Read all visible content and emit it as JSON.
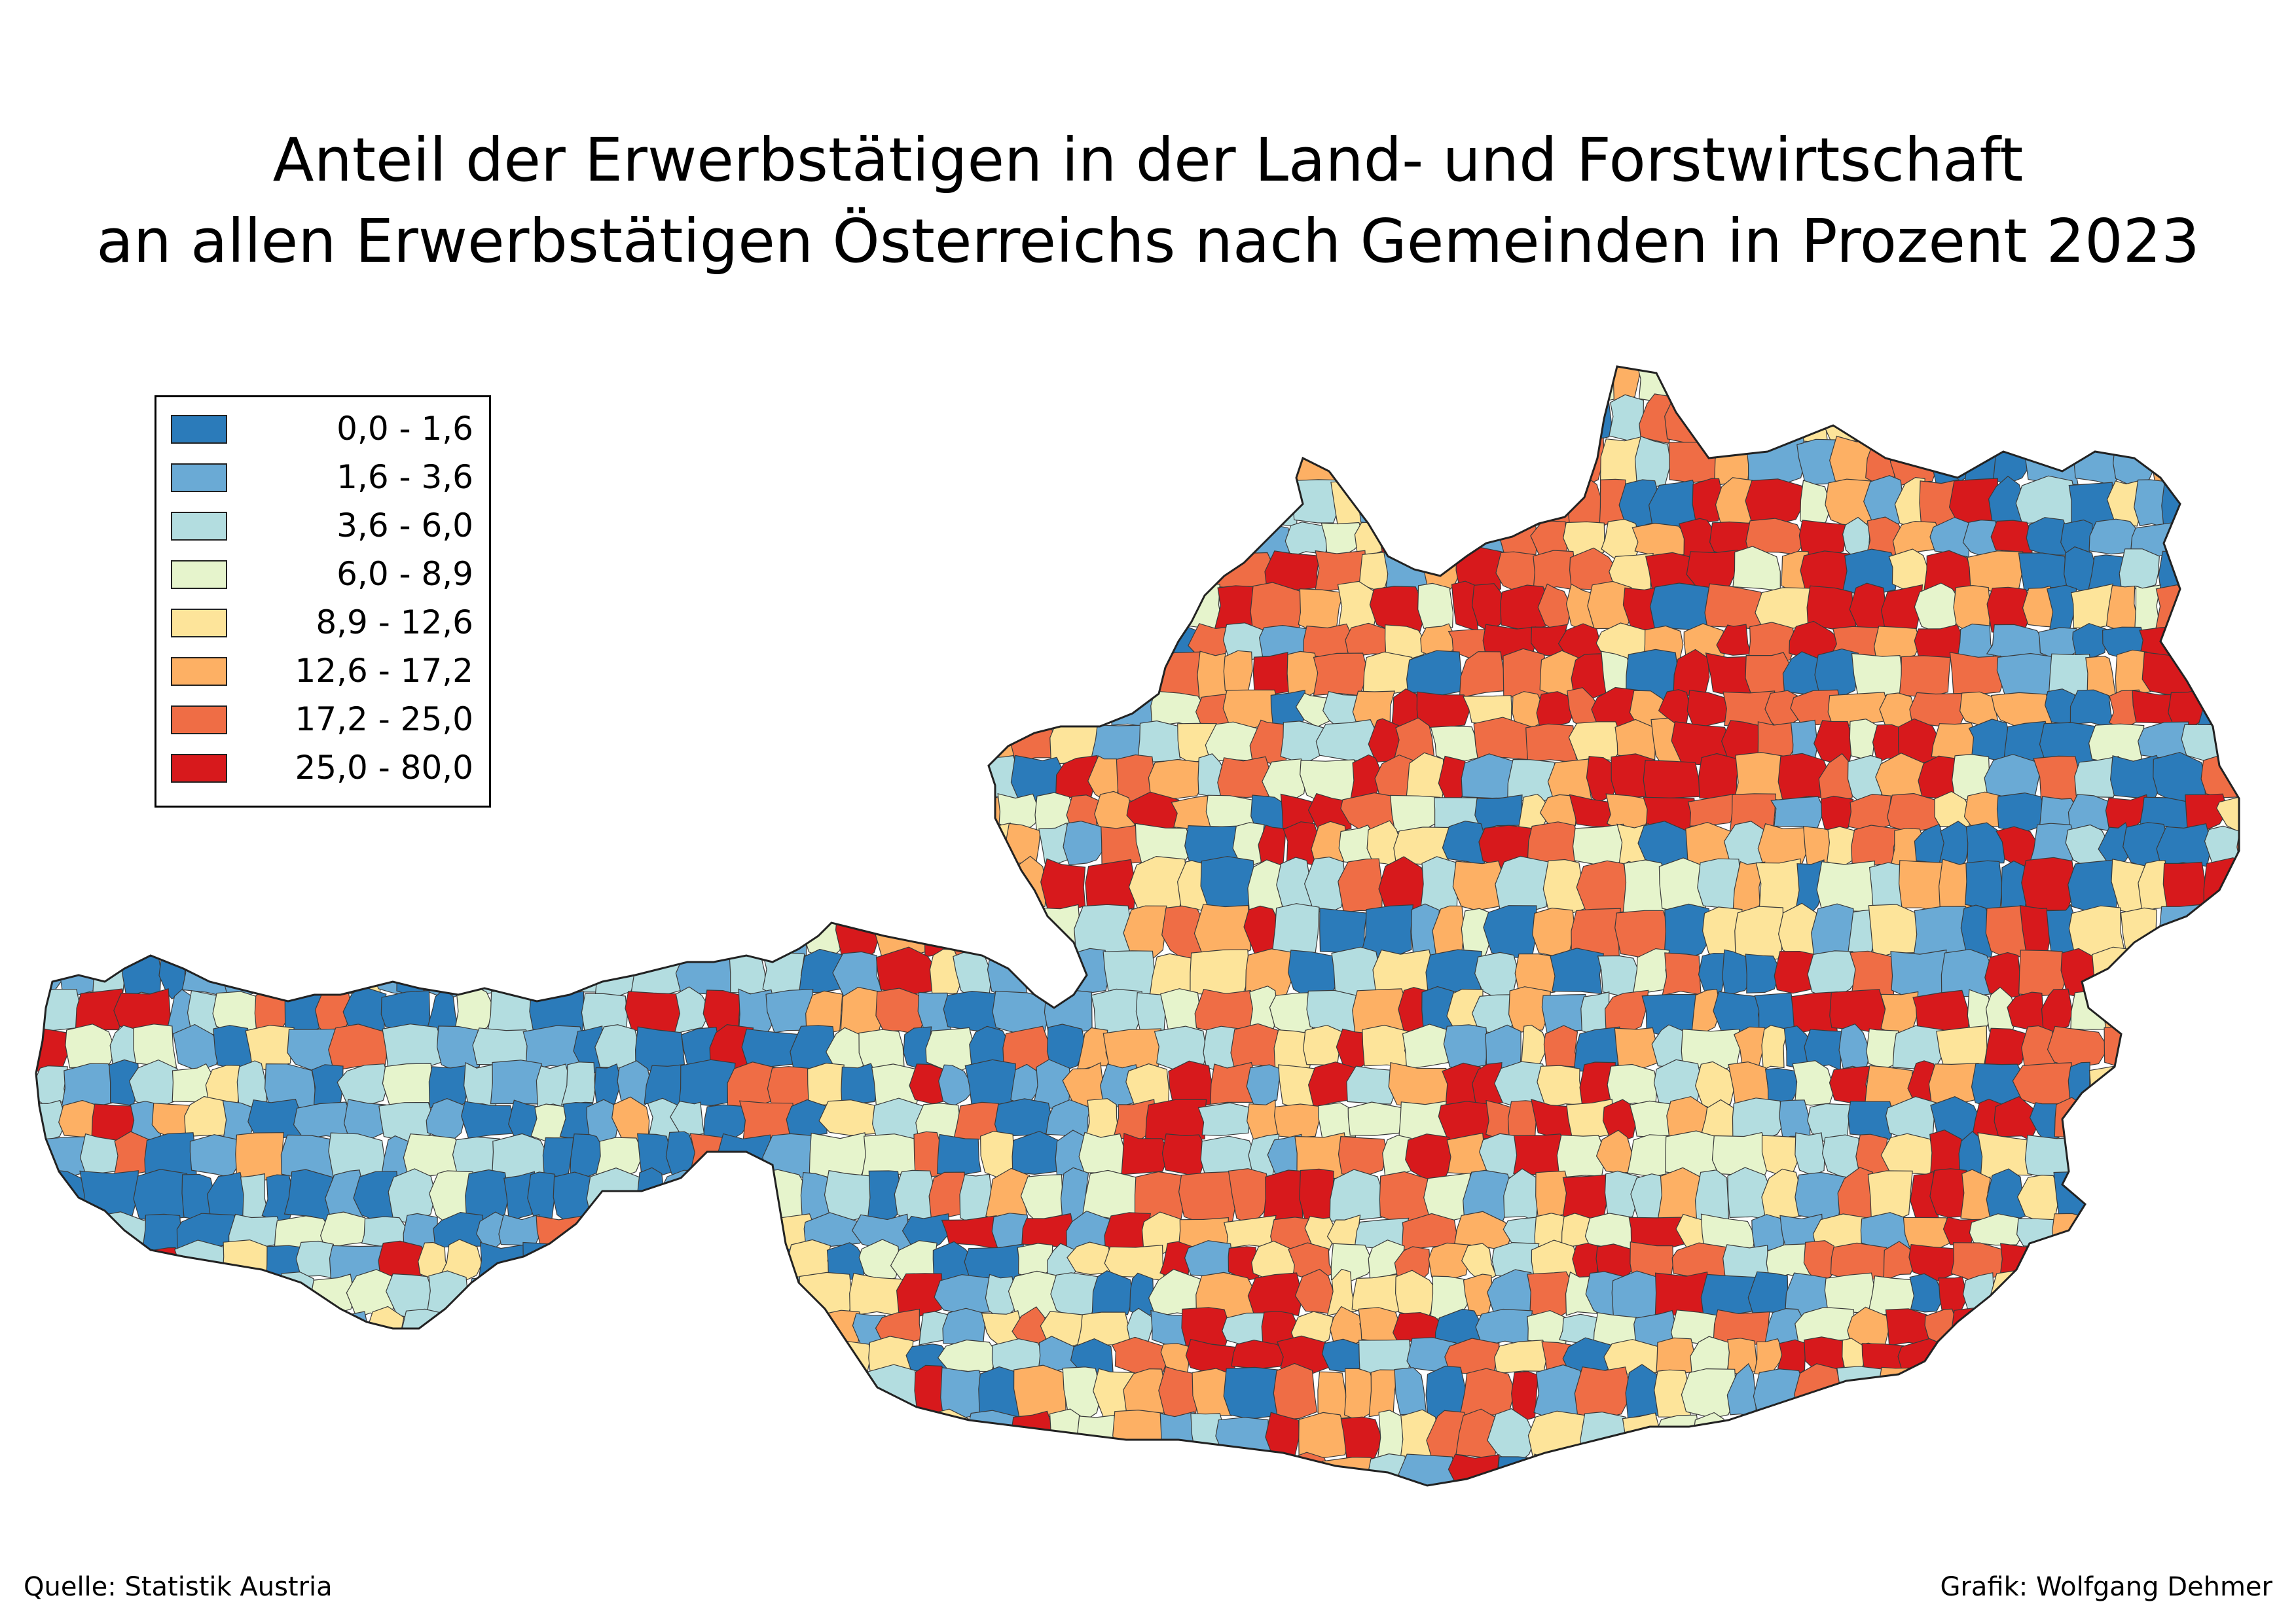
{
  "title": {
    "line1": "Anteil der Erwerbstätigen in der Land- und Forstwirtschaft",
    "line2": "an allen Erwerbstätigen Österreichs nach Gemeinden in Prozent 2023"
  },
  "legend": {
    "classes": [
      {
        "label": "0,0 - 1,6",
        "color": "#2b7bba"
      },
      {
        "label": "1,6 - 3,6",
        "color": "#6aaad5"
      },
      {
        "label": "3,6 - 6,0",
        "color": "#b3dde0"
      },
      {
        "label": "6,0 - 8,9",
        "color": "#e6f4cc"
      },
      {
        "label": "8,9 - 12,6",
        "color": "#fde49a"
      },
      {
        "label": "12,6 - 17,2",
        "color": "#fdb064"
      },
      {
        "label": "17,2 - 25,0",
        "color": "#ef6d45"
      },
      {
        "label": "25,0 - 80,0",
        "color": "#d7191c"
      }
    ]
  },
  "footer": {
    "source": "Quelle: Statistik Austria",
    "credit": "Grafik: Wolfgang Dehmer"
  },
  "map": {
    "region": "Austria",
    "unit": "municipalities",
    "boundary_color": "#3a3a3a"
  }
}
